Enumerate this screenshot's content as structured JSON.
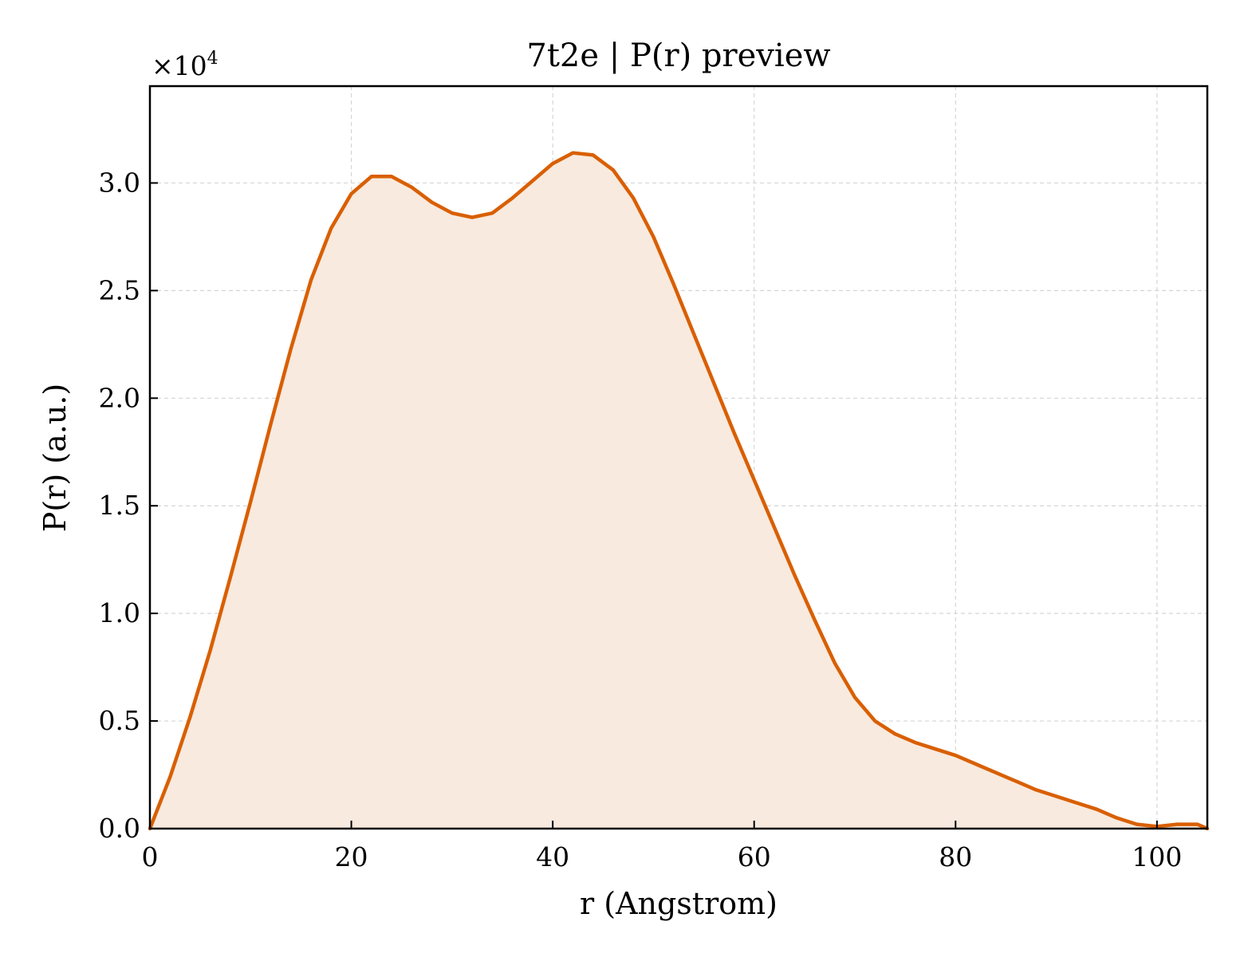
{
  "chart_data": {
    "type": "area",
    "title": "7t2e | P(r) preview",
    "xlabel": "r (Angstrom)",
    "ylabel": "P(r) (a.u.)",
    "y_offset_label": {
      "base": "×10",
      "exponent": "4"
    },
    "xlim": [
      0,
      105
    ],
    "ylim": [
      0,
      3.45
    ],
    "y_scale_factor": 10000,
    "x_ticks": [
      0,
      20,
      40,
      60,
      80,
      100
    ],
    "x_tick_labels": [
      "0",
      "20",
      "40",
      "60",
      "80",
      "100"
    ],
    "y_ticks": [
      0,
      0.5,
      1.0,
      1.5,
      2.0,
      2.5,
      3.0
    ],
    "y_tick_labels": [
      "0.0",
      "0.5",
      "1.0",
      "1.5",
      "2.0",
      "2.5",
      "3.0"
    ],
    "grid": true,
    "line_color": "#d95f02",
    "fill_color": "#f8eadf",
    "series": [
      {
        "x": [
          0,
          2,
          4,
          6,
          8,
          10,
          12,
          14,
          16,
          18,
          20,
          22,
          24,
          26,
          28,
          30,
          32,
          34,
          36,
          38,
          40,
          42,
          44,
          46,
          48,
          50,
          52,
          54,
          56,
          58,
          60,
          62,
          64,
          66,
          68,
          70,
          72,
          74,
          76,
          78,
          80,
          82,
          84,
          86,
          88,
          90,
          92,
          94,
          96,
          98,
          100,
          102,
          104,
          105
        ],
        "values": [
          0.0,
          0.24,
          0.52,
          0.83,
          1.17,
          1.52,
          1.88,
          2.23,
          2.55,
          2.79,
          2.95,
          3.03,
          3.03,
          2.98,
          2.91,
          2.86,
          2.84,
          2.86,
          2.93,
          3.01,
          3.09,
          3.14,
          3.13,
          3.06,
          2.93,
          2.75,
          2.53,
          2.3,
          2.07,
          1.84,
          1.62,
          1.4,
          1.18,
          0.97,
          0.77,
          0.61,
          0.5,
          0.44,
          0.4,
          0.37,
          0.34,
          0.3,
          0.26,
          0.22,
          0.18,
          0.15,
          0.12,
          0.09,
          0.05,
          0.02,
          0.01,
          0.02,
          0.02,
          0.0
        ]
      }
    ]
  }
}
